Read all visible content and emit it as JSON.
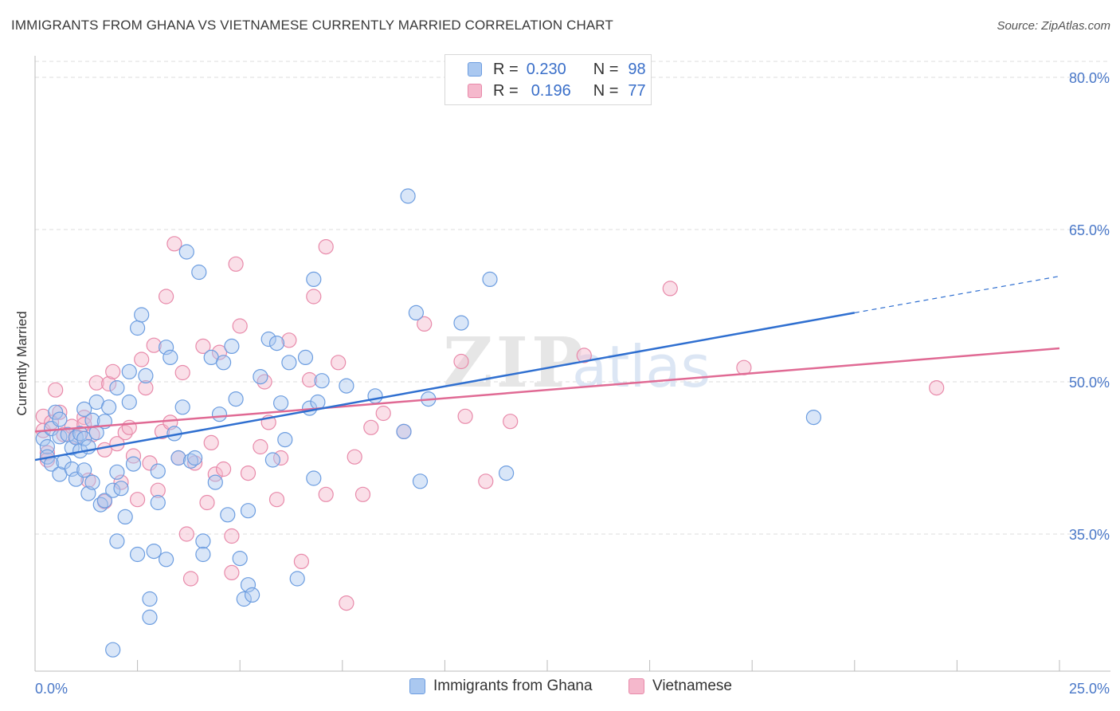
{
  "title": "IMMIGRANTS FROM GHANA VS VIETNAMESE CURRENTLY MARRIED CORRELATION CHART",
  "source": "Source: ZipAtlas.com",
  "watermark": {
    "zip": "ZIP",
    "atlas": "atlas"
  },
  "colors": {
    "ghana_fill": "#aac8f0",
    "ghana_stroke": "#6c9de0",
    "ghana_line": "#2f6fd0",
    "viet_fill": "#f5b8cc",
    "viet_stroke": "#e88aaa",
    "viet_line": "#e06a94",
    "grid": "#dddddd",
    "tick_text": "#4a78c8"
  },
  "legend": {
    "rows": [
      {
        "r_label": "R =",
        "r_value": "0.230",
        "n_label": "N =",
        "n_value": "98"
      },
      {
        "r_label": "R =",
        "r_value": "0.196",
        "n_label": "N =",
        "n_value": "77"
      }
    ]
  },
  "bottom_legend": [
    "Immigrants from Ghana",
    "Vietnamese"
  ],
  "chart_data": {
    "type": "scatter",
    "title": "IMMIGRANTS FROM GHANA VS VIETNAMESE CURRENTLY MARRIED CORRELATION CHART",
    "xlabel": "",
    "ylabel": "Currently Married",
    "xlim": [
      0,
      25
    ],
    "ylim": [
      20,
      82
    ],
    "x_tick_labels": [
      "0.0%",
      "25.0%"
    ],
    "y_ticks": [
      35,
      50,
      65,
      80
    ],
    "y_tick_labels": [
      "35.0%",
      "50.0%",
      "65.0%",
      "80.0%"
    ],
    "grid": "horizontal dashed",
    "legend_position": "top-center",
    "series": [
      {
        "name": "Immigrants from Ghana",
        "r": 0.23,
        "n": 98,
        "trend": {
          "x0": 0,
          "y0": 42.3,
          "x1": 20,
          "y1": 56.8,
          "x_dash_end": 25,
          "y_dash_end": 60.4
        },
        "points": [
          [
            0.2,
            44.4
          ],
          [
            0.3,
            43.6
          ],
          [
            0.3,
            42.6
          ],
          [
            0.4,
            45.4
          ],
          [
            0.4,
            41.9
          ],
          [
            0.5,
            47.0
          ],
          [
            0.6,
            46.3
          ],
          [
            0.6,
            40.9
          ],
          [
            0.6,
            44.6
          ],
          [
            0.7,
            42.1
          ],
          [
            0.8,
            44.8
          ],
          [
            0.9,
            43.5
          ],
          [
            0.9,
            41.4
          ],
          [
            1.0,
            40.4
          ],
          [
            1.0,
            44.5
          ],
          [
            1.1,
            44.9
          ],
          [
            1.1,
            43.2
          ],
          [
            1.2,
            44.4
          ],
          [
            1.2,
            41.3
          ],
          [
            1.2,
            47.3
          ],
          [
            1.3,
            43.6
          ],
          [
            1.3,
            39.0
          ],
          [
            1.4,
            40.1
          ],
          [
            1.4,
            46.2
          ],
          [
            1.5,
            48.0
          ],
          [
            1.5,
            45.0
          ],
          [
            1.6,
            37.9
          ],
          [
            1.7,
            46.1
          ],
          [
            1.7,
            38.3
          ],
          [
            1.8,
            47.5
          ],
          [
            1.9,
            39.3
          ],
          [
            2.0,
            41.1
          ],
          [
            2.0,
            49.4
          ],
          [
            2.0,
            34.3
          ],
          [
            2.1,
            39.5
          ],
          [
            2.2,
            36.7
          ],
          [
            2.3,
            51.0
          ],
          [
            2.3,
            48.0
          ],
          [
            2.4,
            41.9
          ],
          [
            2.5,
            55.3
          ],
          [
            2.5,
            33.0
          ],
          [
            2.6,
            56.6
          ],
          [
            2.7,
            50.6
          ],
          [
            2.8,
            26.8
          ],
          [
            2.8,
            28.6
          ],
          [
            2.9,
            33.3
          ],
          [
            3.0,
            41.2
          ],
          [
            3.0,
            38.1
          ],
          [
            3.2,
            32.5
          ],
          [
            3.2,
            53.4
          ],
          [
            3.3,
            52.4
          ],
          [
            3.4,
            44.9
          ],
          [
            3.5,
            42.5
          ],
          [
            3.6,
            47.5
          ],
          [
            3.7,
            62.8
          ],
          [
            3.8,
            42.2
          ],
          [
            3.9,
            42.5
          ],
          [
            4.0,
            60.8
          ],
          [
            4.1,
            34.3
          ],
          [
            4.1,
            33.0
          ],
          [
            4.3,
            52.4
          ],
          [
            4.4,
            40.1
          ],
          [
            4.5,
            46.8
          ],
          [
            4.6,
            51.9
          ],
          [
            4.7,
            36.9
          ],
          [
            4.8,
            53.5
          ],
          [
            4.9,
            48.3
          ],
          [
            5.0,
            32.6
          ],
          [
            5.1,
            28.6
          ],
          [
            5.2,
            30.0
          ],
          [
            5.2,
            37.3
          ],
          [
            5.3,
            29.0
          ],
          [
            5.5,
            50.5
          ],
          [
            5.7,
            54.2
          ],
          [
            5.8,
            42.3
          ],
          [
            5.9,
            53.8
          ],
          [
            6.0,
            47.9
          ],
          [
            6.1,
            44.3
          ],
          [
            6.2,
            51.9
          ],
          [
            6.4,
            30.6
          ],
          [
            6.6,
            52.4
          ],
          [
            6.7,
            47.4
          ],
          [
            6.8,
            40.5
          ],
          [
            6.8,
            60.1
          ],
          [
            6.9,
            48.0
          ],
          [
            7.0,
            50.1
          ],
          [
            1.9,
            23.6
          ],
          [
            7.6,
            49.6
          ],
          [
            8.3,
            48.6
          ],
          [
            9.0,
            45.1
          ],
          [
            9.3,
            56.8
          ],
          [
            9.4,
            40.2
          ],
          [
            9.6,
            48.3
          ],
          [
            10.4,
            55.8
          ],
          [
            11.1,
            60.1
          ],
          [
            11.5,
            41.0
          ],
          [
            9.1,
            68.3
          ],
          [
            19.0,
            46.5
          ]
        ]
      },
      {
        "name": "Vietnamese",
        "r": 0.196,
        "n": 77,
        "trend": {
          "x0": 0,
          "y0": 45.1,
          "x1": 25,
          "y1": 53.3
        },
        "points": [
          [
            0.2,
            46.6
          ],
          [
            0.2,
            45.2
          ],
          [
            0.3,
            43.0
          ],
          [
            0.3,
            42.3
          ],
          [
            0.4,
            46.0
          ],
          [
            0.5,
            49.2
          ],
          [
            0.6,
            47.0
          ],
          [
            0.7,
            44.8
          ],
          [
            0.9,
            45.6
          ],
          [
            1.0,
            44.6
          ],
          [
            1.2,
            46.5
          ],
          [
            1.2,
            45.8
          ],
          [
            1.3,
            40.3
          ],
          [
            1.4,
            44.8
          ],
          [
            1.5,
            49.9
          ],
          [
            1.7,
            38.2
          ],
          [
            1.7,
            43.3
          ],
          [
            1.8,
            49.8
          ],
          [
            1.9,
            51.0
          ],
          [
            2.0,
            43.9
          ],
          [
            2.1,
            40.1
          ],
          [
            2.2,
            45.0
          ],
          [
            2.3,
            45.5
          ],
          [
            2.4,
            42.7
          ],
          [
            2.5,
            38.4
          ],
          [
            2.6,
            52.2
          ],
          [
            2.7,
            49.4
          ],
          [
            2.8,
            42.0
          ],
          [
            2.9,
            53.6
          ],
          [
            3.0,
            39.3
          ],
          [
            3.1,
            45.1
          ],
          [
            3.2,
            58.4
          ],
          [
            3.3,
            46.0
          ],
          [
            3.4,
            63.6
          ],
          [
            3.5,
            42.5
          ],
          [
            3.6,
            50.9
          ],
          [
            3.7,
            35.0
          ],
          [
            3.8,
            30.6
          ],
          [
            3.9,
            42.0
          ],
          [
            4.1,
            53.5
          ],
          [
            4.2,
            38.1
          ],
          [
            4.3,
            44.0
          ],
          [
            4.4,
            40.9
          ],
          [
            4.5,
            52.9
          ],
          [
            4.6,
            41.4
          ],
          [
            4.8,
            34.8
          ],
          [
            4.8,
            31.2
          ],
          [
            4.9,
            61.6
          ],
          [
            5.0,
            55.5
          ],
          [
            5.2,
            41.0
          ],
          [
            5.5,
            43.6
          ],
          [
            5.6,
            50.0
          ],
          [
            5.7,
            46.0
          ],
          [
            5.9,
            38.4
          ],
          [
            6.0,
            42.5
          ],
          [
            6.2,
            54.1
          ],
          [
            6.5,
            32.3
          ],
          [
            6.7,
            50.2
          ],
          [
            6.8,
            58.4
          ],
          [
            7.1,
            38.9
          ],
          [
            7.1,
            63.3
          ],
          [
            7.4,
            51.9
          ],
          [
            7.6,
            28.2
          ],
          [
            7.8,
            42.6
          ],
          [
            8.0,
            38.9
          ],
          [
            8.2,
            45.5
          ],
          [
            8.5,
            46.9
          ],
          [
            9.0,
            45.1
          ],
          [
            9.5,
            55.7
          ],
          [
            10.4,
            52.0
          ],
          [
            10.5,
            46.6
          ],
          [
            11.0,
            40.2
          ],
          [
            11.6,
            46.1
          ],
          [
            13.4,
            52.6
          ],
          [
            15.5,
            59.2
          ],
          [
            17.3,
            51.4
          ],
          [
            22.0,
            49.4
          ]
        ]
      }
    ]
  }
}
